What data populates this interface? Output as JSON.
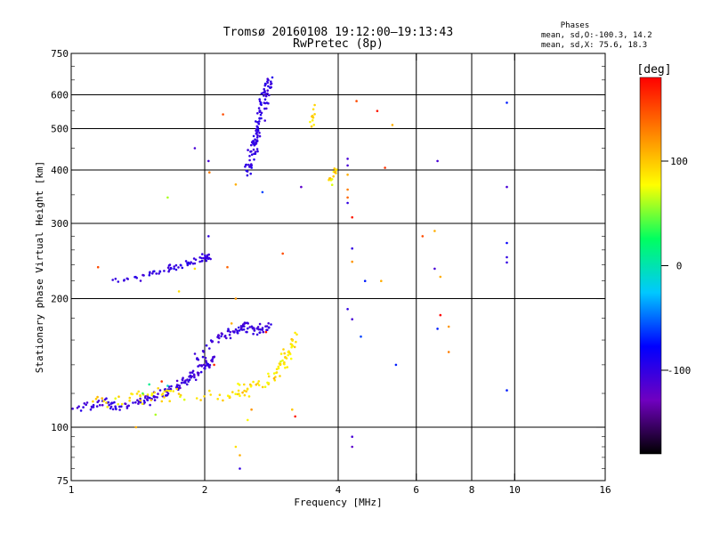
{
  "header": {
    "title_line1": "Tromsø 20160108 19:12:00–19:13:43",
    "title_line2": "RwPretec (8p)",
    "phases_title": "Phases",
    "phases_line1": "mean, sd,O:-100.3, 14.2",
    "phases_line2": "mean, sd,X:  75.6, 18.3"
  },
  "colorbar": {
    "label": "[deg]",
    "ticks": [
      {
        "value": 100,
        "label": "100"
      },
      {
        "value": 0,
        "label": "0"
      },
      {
        "value": -100,
        "label": "-100"
      }
    ],
    "range": [
      -180,
      180
    ],
    "colors": [
      "#000000",
      "#7000c0",
      "#0000ff",
      "#00c8ff",
      "#00ff60",
      "#ffff00",
      "#ff8000",
      "#ff0000"
    ]
  },
  "chart_data": {
    "type": "scatter",
    "xlabel": "Frequency [MHz]",
    "ylabel": "Stationary phase Virtual Height [km]",
    "xscale": "log",
    "yscale": "log",
    "xlim": [
      1,
      16
    ],
    "ylim": [
      75,
      750
    ],
    "xticks": [
      1,
      2,
      4,
      6,
      8,
      10,
      16
    ],
    "yticks_major": [
      100,
      200,
      300,
      400,
      500,
      600,
      750
    ],
    "yticks_minor": [
      75,
      100,
      200,
      300
    ],
    "vgrid": [
      2,
      4,
      6,
      8,
      10
    ],
    "hgrid": [
      100,
      200,
      300,
      400,
      500,
      600
    ],
    "grid": true,
    "traces": [
      {
        "name": "",
        "phase": -105,
        "spread": 10,
        "count": 160,
        "points": [
          [
            1.0,
            113
          ],
          [
            1.1,
            112
          ],
          [
            1.2,
            114
          ],
          [
            1.3,
            111
          ],
          [
            1.4,
            114
          ],
          [
            1.5,
            116
          ],
          [
            1.6,
            120
          ],
          [
            1.7,
            123
          ],
          [
            1.8,
            128
          ],
          [
            1.9,
            133
          ],
          [
            2.0,
            138
          ],
          [
            2.1,
            145
          ]
        ],
        "jitter": 0.022
      },
      {
        "name": "",
        "phase": -105,
        "spread": 8,
        "count": 90,
        "points": [
          [
            1.9,
            145
          ],
          [
            2.0,
            150
          ],
          [
            2.1,
            160
          ],
          [
            2.2,
            163
          ],
          [
            2.3,
            166
          ],
          [
            2.4,
            170
          ],
          [
            2.5,
            172
          ],
          [
            2.6,
            170
          ],
          [
            2.7,
            168
          ],
          [
            2.8,
            175
          ]
        ],
        "jitter": 0.025
      },
      {
        "name": "",
        "phase": -100,
        "spread": 8,
        "count": 70,
        "points": [
          [
            1.22,
            220
          ],
          [
            1.35,
            222
          ],
          [
            1.5,
            228
          ],
          [
            1.6,
            232
          ],
          [
            1.7,
            236
          ],
          [
            1.8,
            240
          ],
          [
            1.9,
            244
          ],
          [
            2.0,
            250
          ],
          [
            2.05,
            252
          ]
        ],
        "jitter": 0.018
      },
      {
        "name": "",
        "phase": -100,
        "spread": 8,
        "count": 110,
        "points": [
          [
            2.5,
            400
          ],
          [
            2.55,
            430
          ],
          [
            2.6,
            470
          ],
          [
            2.65,
            520
          ],
          [
            2.7,
            570
          ],
          [
            2.75,
            610
          ],
          [
            2.8,
            640
          ]
        ],
        "jitter": 0.03
      },
      {
        "name": "",
        "phase": 90,
        "spread": 18,
        "count": 130,
        "points": [
          [
            1.1,
            115
          ],
          [
            1.3,
            116
          ],
          [
            1.5,
            118
          ],
          [
            1.7,
            120
          ],
          [
            2.2,
            118
          ],
          [
            2.4,
            121
          ],
          [
            2.6,
            124
          ],
          [
            2.8,
            131
          ],
          [
            3.0,
            140
          ],
          [
            3.1,
            150
          ],
          [
            3.2,
            165
          ]
        ],
        "jitter": 0.03
      },
      {
        "name": "",
        "phase": 90,
        "spread": 15,
        "count": 12,
        "points": [
          [
            3.5,
            510
          ],
          [
            3.5,
            580
          ]
        ],
        "jitter": 0.02
      },
      {
        "name": "",
        "phase": 90,
        "spread": 15,
        "count": 14,
        "points": [
          [
            3.8,
            370
          ],
          [
            3.95,
            400
          ]
        ],
        "jitter": 0.02
      }
    ],
    "scatter_points": [
      {
        "x": 2.04,
        "y": 420,
        "phase": -110
      },
      {
        "x": 2.04,
        "y": 280,
        "phase": -100
      },
      {
        "x": 1.9,
        "y": 450,
        "phase": -110
      },
      {
        "x": 2.4,
        "y": 80,
        "phase": -100
      },
      {
        "x": 2.2,
        "y": 540,
        "phase": 150
      },
      {
        "x": 3.3,
        "y": 365,
        "phase": -120
      },
      {
        "x": 4.2,
        "y": 425,
        "phase": -110
      },
      {
        "x": 4.2,
        "y": 410,
        "phase": -110
      },
      {
        "x": 4.2,
        "y": 390,
        "phase": 110
      },
      {
        "x": 4.2,
        "y": 360,
        "phase": 130
      },
      {
        "x": 4.2,
        "y": 345,
        "phase": 140
      },
      {
        "x": 4.2,
        "y": 335,
        "phase": -100
      },
      {
        "x": 4.3,
        "y": 310,
        "phase": 170
      },
      {
        "x": 4.3,
        "y": 262,
        "phase": -100
      },
      {
        "x": 4.3,
        "y": 244,
        "phase": 120
      },
      {
        "x": 4.2,
        "y": 189,
        "phase": -100
      },
      {
        "x": 4.3,
        "y": 179,
        "phase": -110
      },
      {
        "x": 4.4,
        "y": 580,
        "phase": 150
      },
      {
        "x": 4.6,
        "y": 220,
        "phase": -70
      },
      {
        "x": 4.5,
        "y": 163,
        "phase": -60
      },
      {
        "x": 4.9,
        "y": 550,
        "phase": 170
      },
      {
        "x": 5.0,
        "y": 220,
        "phase": 110
      },
      {
        "x": 5.1,
        "y": 405,
        "phase": 160
      },
      {
        "x": 5.3,
        "y": 510,
        "phase": 110
      },
      {
        "x": 5.4,
        "y": 140,
        "phase": -70
      },
      {
        "x": 4.3,
        "y": 95,
        "phase": -110
      },
      {
        "x": 4.3,
        "y": 90,
        "phase": -120
      },
      {
        "x": 6.2,
        "y": 280,
        "phase": 150
      },
      {
        "x": 6.7,
        "y": 420,
        "phase": -110
      },
      {
        "x": 6.6,
        "y": 288,
        "phase": 110
      },
      {
        "x": 6.6,
        "y": 235,
        "phase": -110
      },
      {
        "x": 6.8,
        "y": 225,
        "phase": 110
      },
      {
        "x": 6.8,
        "y": 183,
        "phase": 180
      },
      {
        "x": 6.7,
        "y": 170,
        "phase": -70
      },
      {
        "x": 7.1,
        "y": 172,
        "phase": 120
      },
      {
        "x": 7.1,
        "y": 150,
        "phase": 130
      },
      {
        "x": 9.6,
        "y": 575,
        "phase": -70
      },
      {
        "x": 9.6,
        "y": 365,
        "phase": -110
      },
      {
        "x": 9.6,
        "y": 270,
        "phase": -80
      },
      {
        "x": 9.6,
        "y": 250,
        "phase": -100
      },
      {
        "x": 9.6,
        "y": 243,
        "phase": -100
      },
      {
        "x": 9.6,
        "y": 122,
        "phase": -70
      },
      {
        "x": 2.05,
        "y": 395,
        "phase": 130
      },
      {
        "x": 2.7,
        "y": 355,
        "phase": -60
      },
      {
        "x": 2.35,
        "y": 370,
        "phase": 110
      },
      {
        "x": 1.65,
        "y": 345,
        "phase": 60
      },
      {
        "x": 1.15,
        "y": 237,
        "phase": 150
      },
      {
        "x": 2.25,
        "y": 237,
        "phase": 140
      },
      {
        "x": 3.0,
        "y": 255,
        "phase": 150
      },
      {
        "x": 1.9,
        "y": 235,
        "phase": 90
      },
      {
        "x": 1.75,
        "y": 208,
        "phase": 90
      },
      {
        "x": 2.35,
        "y": 200,
        "phase": 120
      },
      {
        "x": 2.3,
        "y": 175,
        "phase": 110
      },
      {
        "x": 2.35,
        "y": 90,
        "phase": 90
      },
      {
        "x": 2.4,
        "y": 86,
        "phase": 110
      },
      {
        "x": 2.5,
        "y": 104,
        "phase": 80
      },
      {
        "x": 2.55,
        "y": 110,
        "phase": 120
      },
      {
        "x": 3.2,
        "y": 106,
        "phase": 170
      },
      {
        "x": 3.15,
        "y": 110,
        "phase": 100
      },
      {
        "x": 1.55,
        "y": 107,
        "phase": 60
      },
      {
        "x": 1.8,
        "y": 116,
        "phase": 70
      },
      {
        "x": 1.6,
        "y": 128,
        "phase": 160
      },
      {
        "x": 1.4,
        "y": 100,
        "phase": 110
      },
      {
        "x": 2.1,
        "y": 140,
        "phase": 165
      },
      {
        "x": 2.75,
        "y": 167,
        "phase": 170
      },
      {
        "x": 1.45,
        "y": 120,
        "phase": 40
      },
      {
        "x": 1.65,
        "y": 125,
        "phase": -10
      },
      {
        "x": 1.5,
        "y": 126,
        "phase": 10
      }
    ]
  }
}
